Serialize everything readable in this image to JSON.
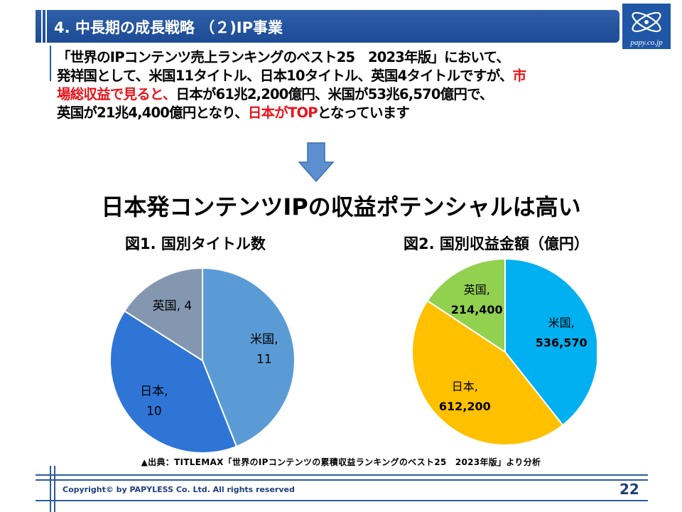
{
  "header": {
    "title": "4. 中長期の成長戦略 （２)IP事業"
  },
  "logo": {
    "text": "papy.co.jp",
    "icon": "atom-orbit-icon"
  },
  "intro": {
    "line1": "「世界のIPコンテンツ売上ランキングのベスト25　2023年版」において、",
    "line2_a": "発祥国として、米国11タイトル、日本10タイトル、英国4タイトルですが、",
    "line2_b": "市",
    "line3_a": "場総収益で見ると、",
    "line3_b": "日本が61兆2,200億円、米国が53兆6,570億円で、",
    "line4_a": "英国が21兆4,400億円となり、",
    "line4_b": "日本がTOP",
    "line4_c": "となっています"
  },
  "headline": "日本発コンテンツIPの収益ポテンシャルは高い",
  "chart_data": [
    {
      "type": "pie",
      "title": "図1. 国別タイトル数",
      "categories": [
        "米国",
        "日本",
        "英国"
      ],
      "values": [
        11,
        10,
        4
      ],
      "labels": [
        "米国,",
        "日本,",
        "英国, 4"
      ],
      "value_labels": [
        "11",
        "10",
        ""
      ],
      "colors": [
        "#5b9bd5",
        "#2e75d6",
        "#8497b0"
      ]
    },
    {
      "type": "pie",
      "title": "図2. 国別収益金額（億円）",
      "categories": [
        "米国",
        "日本",
        "英国"
      ],
      "values": [
        536570,
        612200,
        214400
      ],
      "labels": [
        "米国,",
        "日本,",
        "英国,"
      ],
      "value_labels": [
        "536,570",
        "612,200",
        "214,400"
      ],
      "colors": [
        "#00b0f0",
        "#ffc000",
        "#92d050"
      ]
    }
  ],
  "source_note": "▲出典：TITLEMAX「世界のIPコンテンツの累積収益ランキングのベスト25　2023年版」より分析",
  "footer": {
    "copyright": "Copyright© by PAPYLESS Co. Ltd. All rights reserved",
    "page_number": "22"
  },
  "colors": {
    "header_bg": "#1d4b96",
    "accent_red": "#e8141b",
    "arrow": "#5b8fd0"
  }
}
